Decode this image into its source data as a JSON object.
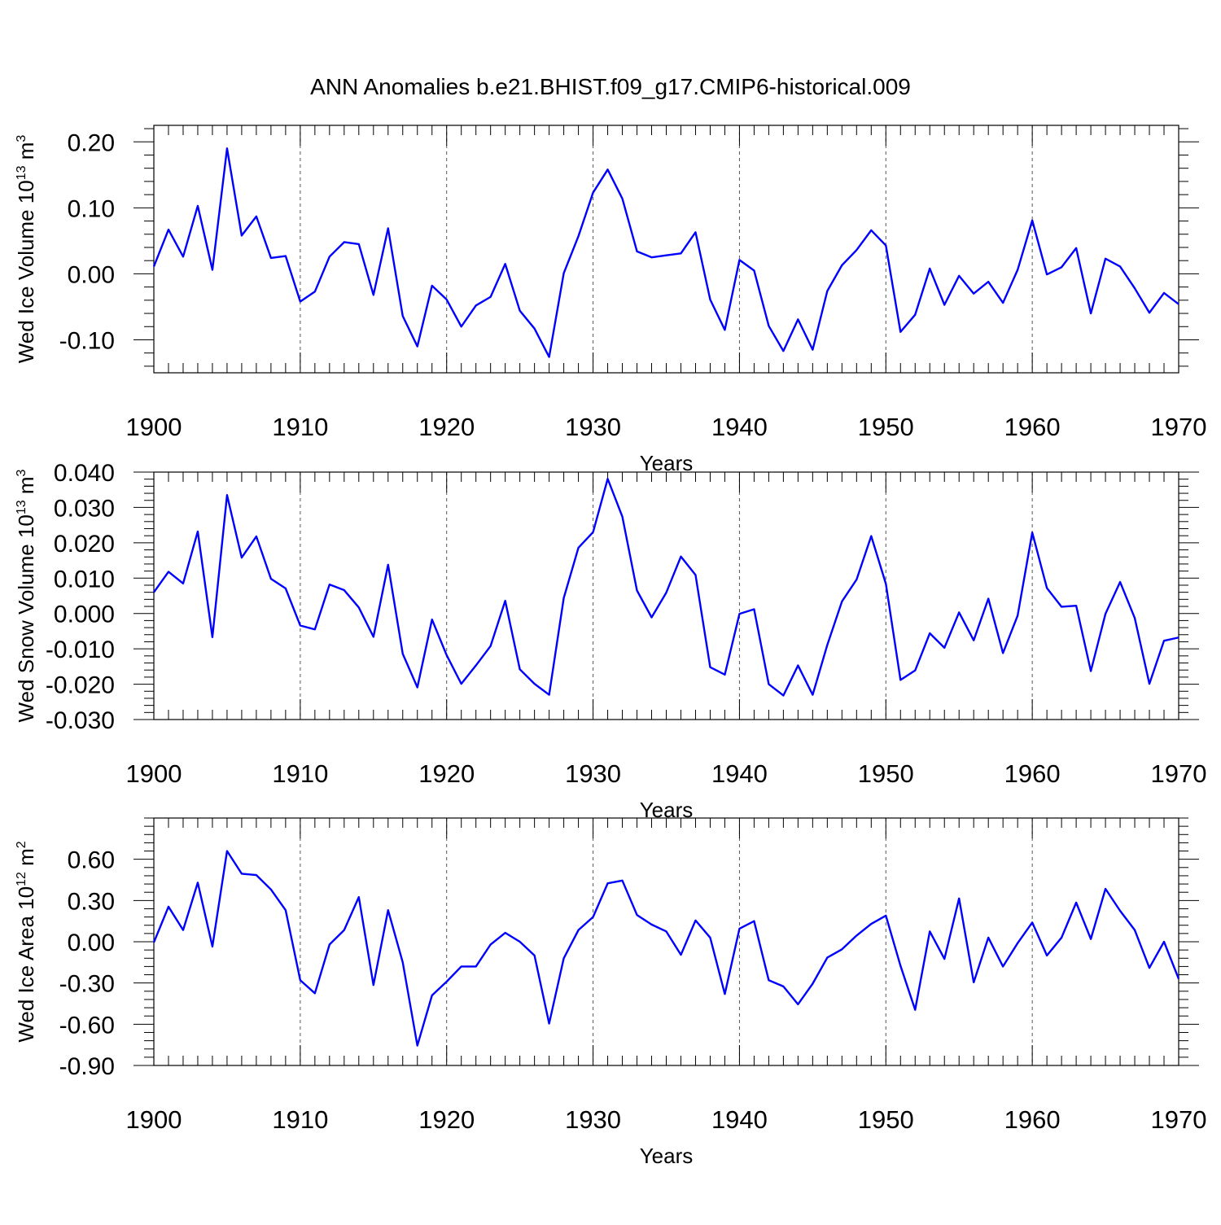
{
  "title": "ANN Anomalies b.e21.BHIST.f09_g17.CMIP6-historical.009",
  "chart_data": [
    {
      "type": "line",
      "ylabel": "Wed Ice Volume 10",
      "ylabel_exp": "13",
      "ylabel_unit": " m",
      "ylabel_unit_exp": "3",
      "xlabel": "Years",
      "xlim": [
        1900,
        1970
      ],
      "ylim": [
        -0.15,
        0.225
      ],
      "yticks": [
        -0.1,
        0.0,
        0.1,
        0.2
      ],
      "ytick_labels": [
        "-0.10",
        "0.00",
        "0.10",
        "0.20"
      ],
      "xticks": [
        1900,
        1910,
        1920,
        1930,
        1940,
        1950,
        1960,
        1970
      ],
      "xtick_labels": [
        "1900",
        "1910",
        "1920",
        "1930",
        "1940",
        "1950",
        "1960",
        "1970"
      ],
      "color": "#0000ff",
      "series": [
        {
          "name": "Wed Ice Volume",
          "x": [
            1900,
            1901,
            1902,
            1903,
            1904,
            1905,
            1906,
            1907,
            1908,
            1909,
            1910,
            1911,
            1912,
            1913,
            1914,
            1915,
            1916,
            1917,
            1918,
            1919,
            1920,
            1921,
            1922,
            1923,
            1924,
            1925,
            1926,
            1927,
            1928,
            1929,
            1930,
            1931,
            1932,
            1933,
            1934,
            1935,
            1936,
            1937,
            1938,
            1939,
            1940,
            1941,
            1942,
            1943,
            1944,
            1945,
            1946,
            1947,
            1948,
            1949,
            1950,
            1951,
            1952,
            1953,
            1954,
            1955,
            1956,
            1957,
            1958,
            1959,
            1960,
            1961,
            1962,
            1963,
            1964,
            1965,
            1966,
            1967,
            1968,
            1969,
            1970
          ],
          "values": [
            0.011,
            0.067,
            0.026,
            0.103,
            0.006,
            0.19,
            0.058,
            0.087,
            0.024,
            0.027,
            -0.042,
            -0.027,
            0.026,
            0.048,
            0.045,
            -0.032,
            0.069,
            -0.064,
            -0.11,
            -0.018,
            -0.039,
            -0.08,
            -0.048,
            -0.035,
            0.015,
            -0.056,
            -0.083,
            -0.126,
            0.001,
            0.057,
            0.123,
            0.158,
            0.114,
            0.034,
            0.025,
            0.028,
            0.031,
            0.063,
            -0.039,
            -0.085,
            0.021,
            0.005,
            -0.079,
            -0.117,
            -0.069,
            -0.115,
            -0.026,
            0.013,
            0.036,
            0.066,
            0.043,
            -0.088,
            -0.062,
            0.008,
            -0.047,
            -0.003,
            -0.03,
            -0.012,
            -0.044,
            0.006,
            0.081,
            -0.001,
            0.01,
            0.039,
            -0.06,
            0.023,
            0.011,
            -0.022,
            -0.059,
            -0.029,
            -0.046
          ]
        }
      ]
    },
    {
      "type": "line",
      "ylabel": "Wed Snow Volume 10",
      "ylabel_exp": "13",
      "ylabel_unit": " m",
      "ylabel_unit_exp": "3",
      "xlabel": "Years",
      "xlim": [
        1900,
        1970
      ],
      "ylim": [
        -0.03,
        0.04
      ],
      "yticks": [
        -0.03,
        -0.02,
        -0.01,
        0.0,
        0.01,
        0.02,
        0.03,
        0.04
      ],
      "ytick_labels": [
        "-0.030",
        "-0.020",
        "-0.010",
        "0.000",
        "0.010",
        "0.020",
        "0.030",
        "0.040"
      ],
      "xticks": [
        1900,
        1910,
        1920,
        1930,
        1940,
        1950,
        1960,
        1970
      ],
      "xtick_labels": [
        "1900",
        "1910",
        "1920",
        "1930",
        "1940",
        "1950",
        "1960",
        "1970"
      ],
      "color": "#0000ff",
      "series": [
        {
          "name": "Wed Snow Volume",
          "x": [
            1900,
            1901,
            1902,
            1903,
            1904,
            1905,
            1906,
            1907,
            1908,
            1909,
            1910,
            1911,
            1912,
            1913,
            1914,
            1915,
            1916,
            1917,
            1918,
            1919,
            1920,
            1921,
            1922,
            1923,
            1924,
            1925,
            1926,
            1927,
            1928,
            1929,
            1930,
            1931,
            1932,
            1933,
            1934,
            1935,
            1936,
            1937,
            1938,
            1939,
            1940,
            1941,
            1942,
            1943,
            1944,
            1945,
            1946,
            1947,
            1948,
            1949,
            1950,
            1951,
            1952,
            1953,
            1954,
            1955,
            1956,
            1957,
            1958,
            1959,
            1960,
            1961,
            1962,
            1963,
            1964,
            1965,
            1966,
            1967,
            1968,
            1969,
            1970
          ],
          "values": [
            0.006,
            0.0118,
            0.0085,
            0.0232,
            -0.0067,
            0.0335,
            0.0158,
            0.0218,
            0.0098,
            0.0071,
            -0.0034,
            -0.0045,
            0.0082,
            0.0066,
            0.0017,
            -0.0066,
            0.0138,
            -0.0114,
            -0.0209,
            -0.0017,
            -0.0118,
            -0.0199,
            -0.0147,
            -0.0092,
            0.0036,
            -0.0158,
            -0.0199,
            -0.023,
            0.0044,
            0.0186,
            0.023,
            0.0381,
            0.0274,
            0.0065,
            -0.0011,
            0.0059,
            0.0161,
            0.0109,
            -0.0152,
            -0.0173,
            -0.0001,
            0.0012,
            -0.02,
            -0.0232,
            -0.0147,
            -0.023,
            -0.0089,
            0.0034,
            0.0096,
            0.0219,
            0.0084,
            -0.0188,
            -0.0161,
            -0.0056,
            -0.0097,
            0.0003,
            -0.0076,
            0.0042,
            -0.0112,
            -0.0006,
            0.0229,
            0.0072,
            0.0019,
            0.0022,
            -0.0163,
            -0.0001,
            0.0089,
            -0.0013,
            -0.0199,
            -0.0077,
            -0.0068
          ]
        }
      ]
    },
    {
      "type": "line",
      "ylabel": "Wed Ice Area 10",
      "ylabel_exp": "12",
      "ylabel_unit": " m",
      "ylabel_unit_exp": "2",
      "xlabel": "Years",
      "xlim": [
        1900,
        1970
      ],
      "ylim": [
        -0.9,
        0.9
      ],
      "yticks": [
        -0.9,
        -0.6,
        -0.3,
        0.0,
        0.3,
        0.6
      ],
      "ytick_labels": [
        "-0.90",
        "-0.60",
        "-0.30",
        "0.00",
        "0.30",
        "0.60"
      ],
      "xticks": [
        1900,
        1910,
        1920,
        1930,
        1940,
        1950,
        1960,
        1970
      ],
      "xtick_labels": [
        "1900",
        "1910",
        "1920",
        "1930",
        "1940",
        "1950",
        "1960",
        "1970"
      ],
      "color": "#0000ff",
      "series": [
        {
          "name": "Wed Ice Area",
          "x": [
            1900,
            1901,
            1902,
            1903,
            1904,
            1905,
            1906,
            1907,
            1908,
            1909,
            1910,
            1911,
            1912,
            1913,
            1914,
            1915,
            1916,
            1917,
            1918,
            1919,
            1920,
            1921,
            1922,
            1923,
            1924,
            1925,
            1926,
            1927,
            1928,
            1929,
            1930,
            1931,
            1932,
            1933,
            1934,
            1935,
            1936,
            1937,
            1938,
            1939,
            1940,
            1941,
            1942,
            1943,
            1944,
            1945,
            1946,
            1947,
            1948,
            1949,
            1950,
            1951,
            1952,
            1953,
            1954,
            1955,
            1956,
            1957,
            1958,
            1959,
            1960,
            1961,
            1962,
            1963,
            1964,
            1965,
            1966,
            1967,
            1968,
            1969,
            1970
          ],
          "values": [
            -0.005,
            0.255,
            0.085,
            0.43,
            -0.035,
            0.66,
            0.495,
            0.485,
            0.38,
            0.23,
            -0.28,
            -0.375,
            -0.02,
            0.085,
            0.325,
            -0.315,
            0.23,
            -0.15,
            -0.755,
            -0.39,
            -0.29,
            -0.18,
            -0.18,
            -0.02,
            0.065,
            0.0,
            -0.1,
            -0.595,
            -0.12,
            0.085,
            0.18,
            0.425,
            0.445,
            0.195,
            0.125,
            0.075,
            -0.095,
            0.155,
            0.03,
            -0.38,
            0.095,
            0.15,
            -0.28,
            -0.325,
            -0.455,
            -0.305,
            -0.115,
            -0.055,
            0.045,
            0.13,
            0.19,
            -0.175,
            -0.495,
            0.075,
            -0.125,
            0.315,
            -0.295,
            0.03,
            -0.18,
            -0.01,
            0.14,
            -0.1,
            0.03,
            0.285,
            0.02,
            0.385,
            0.225,
            0.085,
            -0.19,
            0.0,
            -0.27
          ]
        }
      ]
    }
  ]
}
